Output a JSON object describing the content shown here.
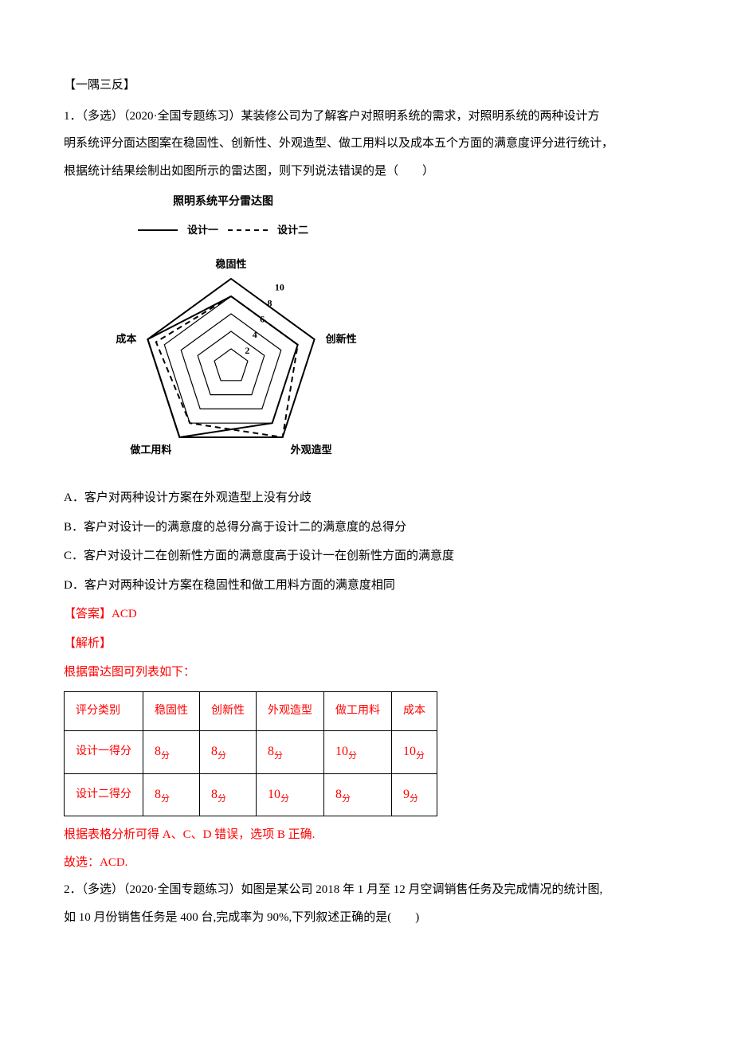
{
  "section_header": "【一隅三反】",
  "q1": {
    "number_prefix": "1．（多选）（2020·全国专题练习）",
    "stem1": "某装修公司为了解客户对照明系统的需求，对照明系统的两种设计方",
    "stem2": "明系统评分面达图案在稳固性、创新性、外观造型、做工用料以及成本五个方面的满意度评分进行统计，",
    "stem3": "根据统计结果绘制出如图所示的雷达图，则下列说法错误的是（　　）",
    "chart": {
      "title": "照明系统平分雷达图",
      "legend": {
        "a": "设计一",
        "b": "设计二"
      },
      "axes": [
        "稳固性",
        "创新性",
        "外观造型",
        "做工用料",
        "成本"
      ],
      "ticks": [
        "2",
        "4",
        "6",
        "8",
        "10"
      ],
      "max": 10,
      "series_a": [
        8,
        8,
        8,
        10,
        10
      ],
      "series_b": [
        8,
        8,
        10,
        8,
        9
      ],
      "colors": {
        "line": "#000000",
        "bg": "#ffffff"
      }
    },
    "opts": {
      "A": "A．客户对两种设计方案在外观造型上没有分歧",
      "B": "B．客户对设计一的满意度的总得分高于设计二的满意度的总得分",
      "C": "C．客户对设计二在创新性方面的满意度高于设计一在创新性方面的满意度",
      "D": "D．客户对两种设计方案在稳固性和做工用料方面的满意度相同"
    },
    "answer_label": "【答案】",
    "answer": "ACD",
    "explain_label": "【解析】",
    "explain_line": "根据雷达图可列表如下：",
    "table": {
      "header": [
        "评分类别",
        "稳固性",
        "创新性",
        "外观造型",
        "做工用料",
        "成本"
      ],
      "row1_label": "设计一得分",
      "row1": [
        "8",
        "8",
        "8",
        "10",
        "10"
      ],
      "row2_label": "设计二得分",
      "row2": [
        "8",
        "8",
        "10",
        "8",
        "9"
      ],
      "unit": "分"
    },
    "conclusion": "根据表格分析可得 A、C、D 错误，选项 B 正确.",
    "final": "故选：ACD."
  },
  "q2": {
    "number_prefix": "2．（多选）（2020·全国专题练习）",
    "stem1": "如图是某公司 2018 年 1 月至 12 月空调销售任务及完成情况的统计图,",
    "stem2": "如 10 月份销售任务是 400 台,完成率为 90%,下列叙述正确的是(　　)"
  }
}
